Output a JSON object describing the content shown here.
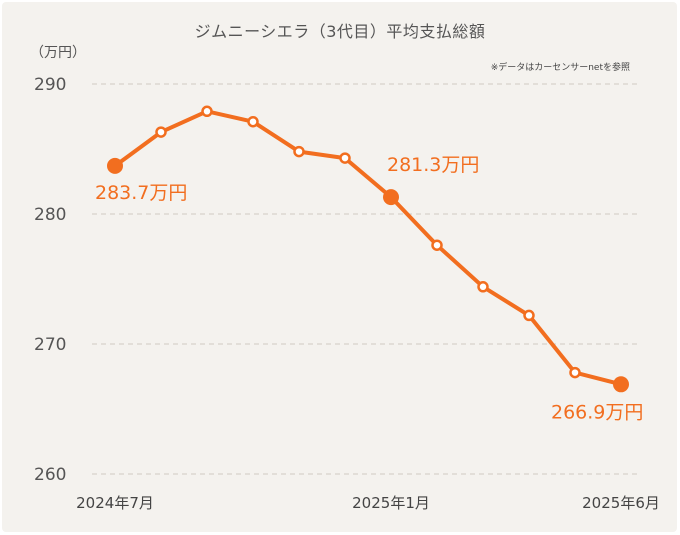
{
  "title": "ジムニーシエラ（3代目）平均支払総額",
  "unit_label": "（万円）",
  "source_note": "※データはカーセンサーnetを参照",
  "colors": {
    "line": "#f26e1f",
    "grid": "#cfcac3",
    "background": "#f4f2ee"
  },
  "chart_data": {
    "type": "line",
    "title": "ジムニーシエラ（3代目）平均支払総額",
    "ylabel": "（万円）",
    "xlabel": "",
    "ylim": [
      260,
      290
    ],
    "yticks": [
      260,
      270,
      280,
      290
    ],
    "grid": true,
    "x": [
      "2024年7月",
      "2024年8月",
      "2024年9月",
      "2024年10月",
      "2024年11月",
      "2024年12月",
      "2025年1月",
      "2025年2月",
      "2025年3月",
      "2025年4月",
      "2025年5月",
      "2025年6月"
    ],
    "x_tick_labels": [
      "2024年7月",
      "2025年1月",
      "2025年6月"
    ],
    "series": [
      {
        "values": [
          283.7,
          286.3,
          287.9,
          287.1,
          284.8,
          284.3,
          281.3,
          277.6,
          274.4,
          272.2,
          267.8,
          266.9
        ]
      }
    ],
    "annotations": [
      {
        "index": 0,
        "text": "283.7万円"
      },
      {
        "index": 6,
        "text": "281.3万円"
      },
      {
        "index": 11,
        "text": "266.9万円"
      }
    ]
  }
}
